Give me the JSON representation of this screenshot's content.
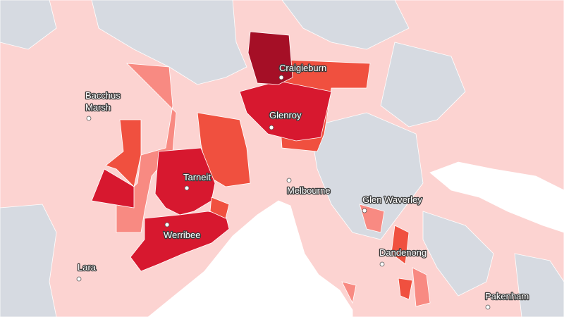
{
  "places": [
    {
      "label": "Craigieburn"
    },
    {
      "label": [
        "Bacchus",
        "Marsh"
      ]
    },
    {
      "label": "Glenroy"
    },
    {
      "label": "Tarneit"
    },
    {
      "label": "Melbourne"
    },
    {
      "label": "Glen Waverley"
    },
    {
      "label": "Werribee"
    },
    {
      "label": "Dandenong"
    },
    {
      "label": "Lara"
    },
    {
      "label": "Pakenham"
    }
  ]
}
